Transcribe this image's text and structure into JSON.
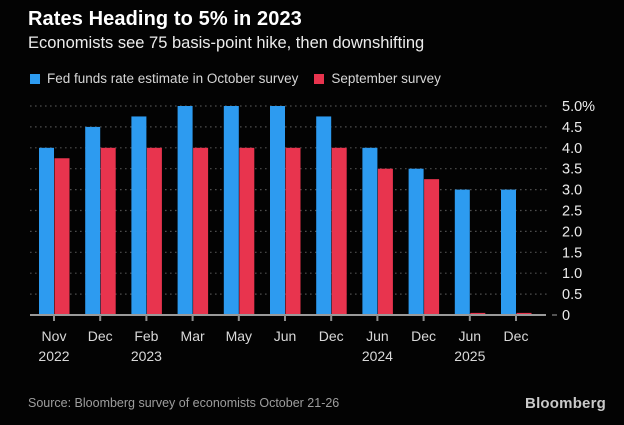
{
  "header": {
    "title": "Rates Heading to 5% in 2023",
    "subtitle": "Economists see 75 basis-point hike, then downshifting"
  },
  "legend": [
    {
      "label": "Fed funds rate estimate in October survey",
      "color": "#2d9bf0"
    },
    {
      "label": "September survey",
      "color": "#e8344e"
    }
  ],
  "chart_data": {
    "type": "bar",
    "categories": [
      "Nov 2022",
      "Dec 2022",
      "Feb 2023",
      "Mar 2023",
      "May 2023",
      "Jun 2023",
      "Dec 2023",
      "Jun 2024",
      "Dec 2024",
      "Jun 2025",
      "Dec 2025"
    ],
    "x_month_labels": [
      "Nov",
      "Dec",
      "Feb",
      "Mar",
      "May",
      "Jun",
      "Dec",
      "Jun",
      "Dec",
      "Jun",
      "Dec"
    ],
    "x_year_labels": [
      {
        "index": 0,
        "label": "2022"
      },
      {
        "index": 2,
        "label": "2023"
      },
      {
        "index": 7,
        "label": "2024"
      },
      {
        "index": 9,
        "label": "2025"
      }
    ],
    "series": [
      {
        "name": "Fed funds rate estimate in October survey",
        "color": "#2d9bf0",
        "values": [
          4.0,
          4.5,
          4.75,
          5.0,
          5.0,
          5.0,
          4.75,
          4.0,
          3.5,
          3.0,
          3.0
        ]
      },
      {
        "name": "September survey",
        "color": "#e8344e",
        "values": [
          3.75,
          4.0,
          4.0,
          4.0,
          4.0,
          4.0,
          4.0,
          3.5,
          3.25,
          0.05,
          0.05
        ]
      }
    ],
    "y_ticks": [
      {
        "value": 5.0,
        "label": "5.0%"
      },
      {
        "value": 4.5,
        "label": "4.5"
      },
      {
        "value": 4.0,
        "label": "4.0"
      },
      {
        "value": 3.5,
        "label": "3.5"
      },
      {
        "value": 3.0,
        "label": "3.0"
      },
      {
        "value": 2.5,
        "label": "2.5"
      },
      {
        "value": 2.0,
        "label": "2.0"
      },
      {
        "value": 1.5,
        "label": "1.5"
      },
      {
        "value": 1.0,
        "label": "1.0"
      },
      {
        "value": 0.5,
        "label": "0.5"
      },
      {
        "value": 0.0,
        "label": "0"
      }
    ],
    "ylim": [
      0,
      5.0
    ],
    "title": "Rates Heading to 5% in 2023",
    "xlabel": "",
    "ylabel": "",
    "grid": "horizontal-dotted",
    "legend_position": "top",
    "colors": {
      "background": "#030303",
      "grid_dots": "#4d4d4d",
      "axis_line": "#9a9a9a",
      "tick_mark": "#8f8f8f",
      "y_label": "#ececec",
      "x_label": "#d9d9d9"
    }
  },
  "footer": {
    "source": "Source: Bloomberg survey of economists October 21-26",
    "logo": "Bloomberg"
  }
}
